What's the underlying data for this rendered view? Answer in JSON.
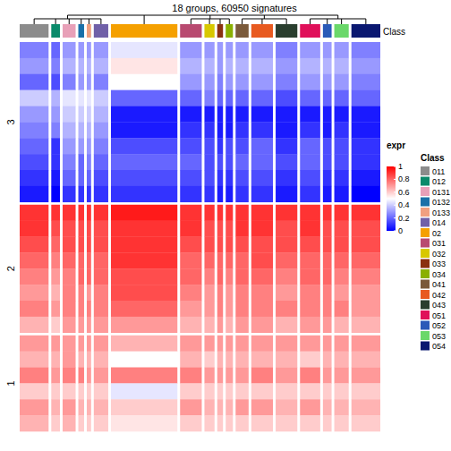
{
  "chart_data": {
    "type": "heatmap",
    "title": "18 groups, 60950 signatures",
    "annotation_label": "Class",
    "classes": [
      {
        "name": "011",
        "color": "#8c8c8c",
        "n": 20
      },
      {
        "name": "012",
        "color": "#0a8a6a",
        "n": 6
      },
      {
        "name": "0131",
        "color": "#e8a0b8",
        "n": 9
      },
      {
        "name": "0132",
        "color": "#1a70a8",
        "n": 4
      },
      {
        "name": "0133",
        "color": "#f0a080",
        "n": 3
      },
      {
        "name": "014",
        "color": "#7060a8",
        "n": 10
      },
      {
        "name": "02",
        "color": "#f5a000",
        "n": 46
      },
      {
        "name": "031",
        "color": "#b84a70",
        "n": 15
      },
      {
        "name": "032",
        "color": "#d8c800",
        "n": 7
      },
      {
        "name": "033",
        "color": "#8a3010",
        "n": 4
      },
      {
        "name": "034",
        "color": "#8ab000",
        "n": 5
      },
      {
        "name": "041",
        "color": "#7a5a3a",
        "n": 9
      },
      {
        "name": "042",
        "color": "#e85a20",
        "n": 15
      },
      {
        "name": "043",
        "color": "#2a3e2e",
        "n": 15
      },
      {
        "name": "051",
        "color": "#e0105a",
        "n": 14
      },
      {
        "name": "052",
        "color": "#2a5ab8",
        "n": 6
      },
      {
        "name": "053",
        "color": "#6ad86a",
        "n": 10
      },
      {
        "name": "054",
        "color": "#0a1870",
        "n": 20
      }
    ],
    "row_slices": [
      {
        "label": "3",
        "cells": [
          [
            0.25,
            0.2,
            0.3,
            0.3,
            0.3,
            0.3,
            0.45,
            0.3,
            0.3,
            0.3,
            0.3,
            0.3,
            0.3,
            0.25,
            0.3,
            0.3,
            0.3,
            0.25
          ],
          [
            0.3,
            0.25,
            0.35,
            0.35,
            0.35,
            0.35,
            0.55,
            0.35,
            0.35,
            0.3,
            0.35,
            0.35,
            0.35,
            0.3,
            0.35,
            0.35,
            0.35,
            0.3
          ],
          [
            0.2,
            0.15,
            0.25,
            0.3,
            0.3,
            0.25,
            0.5,
            0.3,
            0.3,
            0.25,
            0.3,
            0.3,
            0.3,
            0.25,
            0.3,
            0.3,
            0.3,
            0.25
          ],
          [
            0.4,
            0.35,
            0.45,
            0.45,
            0.45,
            0.4,
            0.2,
            0.2,
            0.25,
            0.2,
            0.2,
            0.2,
            0.2,
            0.15,
            0.2,
            0.2,
            0.2,
            0.2
          ],
          [
            0.3,
            0.3,
            0.4,
            0.4,
            0.4,
            0.35,
            0.05,
            0.05,
            0.05,
            0.05,
            0.05,
            0.05,
            0.05,
            0.05,
            0.05,
            0.05,
            0.05,
            0.05
          ],
          [
            0.25,
            0.25,
            0.35,
            0.35,
            0.35,
            0.3,
            0.05,
            0.1,
            0.1,
            0.05,
            0.05,
            0.1,
            0.1,
            0.05,
            0.1,
            0.05,
            0.1,
            0.05
          ],
          [
            0.2,
            0.1,
            0.3,
            0.3,
            0.3,
            0.25,
            0.15,
            0.15,
            0.15,
            0.1,
            0.15,
            0.15,
            0.2,
            0.1,
            0.2,
            0.15,
            0.15,
            0.1
          ],
          [
            0.15,
            0.1,
            0.25,
            0.2,
            0.25,
            0.2,
            0.2,
            0.2,
            0.15,
            0.15,
            0.15,
            0.2,
            0.2,
            0.15,
            0.2,
            0.15,
            0.15,
            0.1
          ],
          [
            0.1,
            0.05,
            0.2,
            0.2,
            0.2,
            0.15,
            0.15,
            0.15,
            0.15,
            0.1,
            0.1,
            0.15,
            0.15,
            0.1,
            0.15,
            0.1,
            0.1,
            0.05
          ],
          [
            0.05,
            0,
            0.1,
            0.1,
            0.1,
            0.1,
            0.1,
            0.1,
            0.1,
            0.05,
            0.05,
            0.1,
            0.1,
            0.05,
            0.1,
            0.05,
            0.05,
            0
          ]
        ]
      },
      {
        "label": "2",
        "cells": [
          [
            0.9,
            0.9,
            0.9,
            0.9,
            0.9,
            0.9,
            0.95,
            0.9,
            0.9,
            0.9,
            0.9,
            0.9,
            0.9,
            0.9,
            0.9,
            0.9,
            0.9,
            0.9
          ],
          [
            0.9,
            0.85,
            0.85,
            0.85,
            0.85,
            0.85,
            0.9,
            0.9,
            0.85,
            0.85,
            0.85,
            0.9,
            0.9,
            0.85,
            0.9,
            0.85,
            0.85,
            0.85
          ],
          [
            0.85,
            0.8,
            0.85,
            0.85,
            0.85,
            0.85,
            0.9,
            0.85,
            0.85,
            0.85,
            0.85,
            0.85,
            0.85,
            0.85,
            0.85,
            0.85,
            0.85,
            0.85
          ],
          [
            0.8,
            0.75,
            0.8,
            0.8,
            0.8,
            0.8,
            0.9,
            0.8,
            0.8,
            0.8,
            0.8,
            0.8,
            0.85,
            0.8,
            0.8,
            0.8,
            0.8,
            0.8
          ],
          [
            0.75,
            0.7,
            0.75,
            0.8,
            0.8,
            0.8,
            0.85,
            0.8,
            0.75,
            0.8,
            0.75,
            0.8,
            0.8,
            0.75,
            0.8,
            0.8,
            0.75,
            0.75
          ],
          [
            0.7,
            0.65,
            0.75,
            0.75,
            0.7,
            0.75,
            0.85,
            0.75,
            0.7,
            0.75,
            0.7,
            0.75,
            0.75,
            0.7,
            0.75,
            0.75,
            0.7,
            0.7
          ],
          [
            0.75,
            0.7,
            0.75,
            0.75,
            0.75,
            0.75,
            0.8,
            0.7,
            0.7,
            0.75,
            0.7,
            0.75,
            0.75,
            0.75,
            0.75,
            0.75,
            0.75,
            0.7
          ],
          [
            0.65,
            0.6,
            0.7,
            0.7,
            0.7,
            0.7,
            0.7,
            0.65,
            0.65,
            0.7,
            0.65,
            0.7,
            0.7,
            0.65,
            0.7,
            0.7,
            0.65,
            0.65
          ]
        ]
      },
      {
        "label": "1",
        "cells": [
          [
            0.7,
            0.7,
            0.7,
            0.7,
            0.7,
            0.7,
            0.65,
            0.7,
            0.7,
            0.7,
            0.7,
            0.7,
            0.7,
            0.7,
            0.7,
            0.7,
            0.7,
            0.7
          ],
          [
            0.65,
            0.65,
            0.7,
            0.65,
            0.65,
            0.65,
            0.5,
            0.65,
            0.6,
            0.65,
            0.65,
            0.65,
            0.65,
            0.65,
            0.6,
            0.65,
            0.65,
            0.65
          ],
          [
            0.75,
            0.7,
            0.75,
            0.75,
            0.7,
            0.7,
            0.75,
            0.75,
            0.7,
            0.7,
            0.7,
            0.7,
            0.75,
            0.7,
            0.75,
            0.7,
            0.7,
            0.7
          ],
          [
            0.6,
            0.6,
            0.6,
            0.6,
            0.6,
            0.6,
            0.45,
            0.6,
            0.6,
            0.6,
            0.6,
            0.6,
            0.6,
            0.6,
            0.6,
            0.6,
            0.6,
            0.6
          ],
          [
            0.7,
            0.65,
            0.7,
            0.65,
            0.65,
            0.65,
            0.6,
            0.7,
            0.65,
            0.65,
            0.65,
            0.7,
            0.7,
            0.65,
            0.7,
            0.65,
            0.65,
            0.65
          ],
          [
            0.65,
            0.6,
            0.65,
            0.6,
            0.6,
            0.6,
            0.55,
            0.6,
            0.6,
            0.6,
            0.6,
            0.6,
            0.6,
            0.6,
            0.6,
            0.6,
            0.6,
            0.6
          ]
        ]
      }
    ],
    "color_bar": {
      "title": "expr",
      "range": [
        0,
        1
      ],
      "ticks": [
        0,
        0.2,
        0.4,
        0.6,
        0.8,
        1
      ],
      "breaks": [
        0,
        0.5,
        1
      ],
      "colors": [
        "#0000ff",
        "#ffffff",
        "#ff0000"
      ]
    },
    "legend": "right"
  }
}
